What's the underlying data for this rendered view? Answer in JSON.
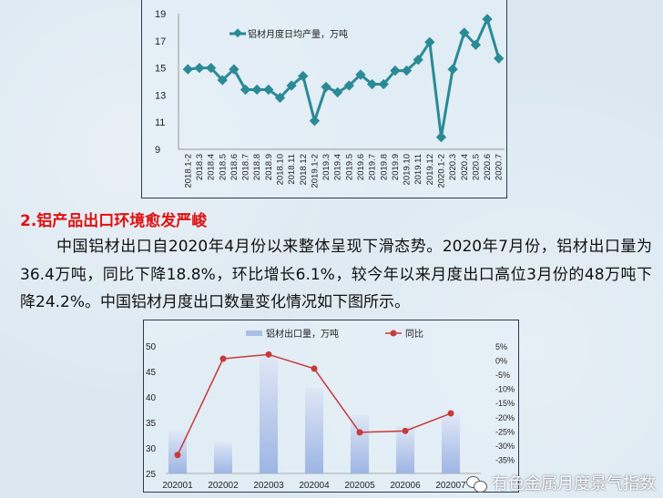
{
  "heading": "2.铝产品出口环境愈发严峻",
  "paragraph": "中国铝材出口自2020年4月份以来整体呈现下滑态势。2020年7月份，铝材出口量为36.4万吨，同比下降18.8%，环比增长6.1%，较今年以来月度出口高位3月份的48万吨下降24.2%。中国铝材月度出口数量变化情况如下图所示。",
  "watermark": "有色金属月度景气指数",
  "chart_data": [
    {
      "type": "line",
      "legend": "铝材月度日均产量，万吨",
      "legend_placement": "top-left",
      "color": "#2a8a96",
      "categories": [
        "2018.1-2",
        "2018.3",
        "2018.4",
        "2018.5",
        "2018.6",
        "2018.7",
        "2018.8",
        "2018.9",
        "2018.10",
        "2018.11",
        "2018.12",
        "2019.1-2",
        "2019.3",
        "2019.4",
        "2019.5",
        "2019.6",
        "2019.7",
        "2019.8",
        "2019.9",
        "2019.10",
        "2019.11",
        "2019.12",
        "2020.1-2",
        "2020.3",
        "2020.4",
        "2020.5",
        "2020.6",
        "2020.7"
      ],
      "values": [
        14.9,
        15.0,
        15.0,
        14.1,
        14.9,
        13.4,
        13.4,
        13.4,
        12.8,
        13.7,
        14.4,
        11.1,
        13.6,
        13.2,
        13.7,
        14.5,
        13.8,
        13.8,
        14.8,
        14.8,
        15.6,
        16.9,
        9.9,
        14.9,
        17.6,
        16.7,
        18.6,
        15.7
      ],
      "ylim": [
        9,
        19
      ],
      "yticks": [
        "9",
        "11",
        "13",
        "15",
        "17",
        "19"
      ],
      "grid": false
    },
    {
      "type": "bar+line",
      "categories": [
        "202001",
        "202002",
        "202003",
        "202004",
        "202005",
        "202006",
        "202007"
      ],
      "series": [
        {
          "name": "铝材出口量，万吨",
          "type": "bar",
          "axis": "left",
          "color": "#aabfe6",
          "values": [
            33.2,
            31.1,
            48.0,
            41.8,
            36.5,
            34.3,
            36.4
          ]
        },
        {
          "name": "同比",
          "type": "line",
          "axis": "right",
          "color": "#c83a3a",
          "values": [
            -33.5,
            0.5,
            2.0,
            -3.0,
            -25.5,
            -25.0,
            -18.8
          ]
        }
      ],
      "ylim": [
        25,
        50
      ],
      "yticks": [
        "25",
        "30",
        "35",
        "40",
        "45",
        "50"
      ],
      "y2lim": [
        -40,
        5
      ],
      "y2ticks": [
        "-35%",
        "-30%",
        "-25%",
        "-20%",
        "-15%",
        "-10%",
        "-5%",
        "0%",
        "5%"
      ],
      "legend_placement": "top",
      "grid": false
    }
  ]
}
